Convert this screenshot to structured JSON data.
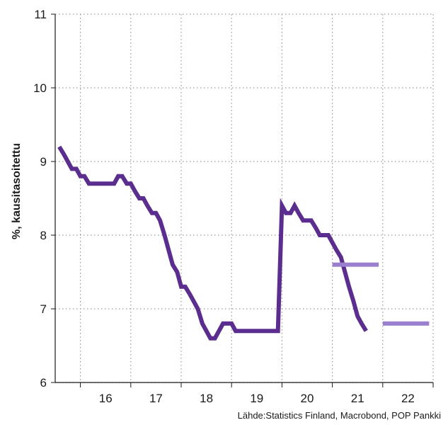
{
  "chart_data": {
    "type": "line",
    "ylabel": "%, kausitasoitettu",
    "xlabel": "",
    "ylim": [
      6,
      11
    ],
    "xlim": [
      2015.5,
      2023.0
    ],
    "y_ticks": [
      "6",
      "7",
      "8",
      "9",
      "10",
      "11"
    ],
    "x_tick_labels": [
      "16",
      "17",
      "18",
      "19",
      "20",
      "21",
      "22"
    ],
    "grid": true,
    "series": [
      {
        "type": "line",
        "color": "#5b2d8e",
        "x": [
          2015.58,
          2015.67,
          2015.75,
          2015.83,
          2015.92,
          2016.0,
          2016.08,
          2016.17,
          2016.25,
          2016.33,
          2016.42,
          2016.5,
          2016.58,
          2016.67,
          2016.75,
          2016.83,
          2016.92,
          2017.0,
          2017.08,
          2017.17,
          2017.25,
          2017.33,
          2017.42,
          2017.5,
          2017.58,
          2017.67,
          2017.75,
          2017.83,
          2017.92,
          2018.0,
          2018.08,
          2018.17,
          2018.25,
          2018.33,
          2018.42,
          2018.5,
          2018.58,
          2018.67,
          2018.75,
          2018.83,
          2018.92,
          2019.0,
          2019.08,
          2019.17,
          2019.25,
          2019.33,
          2019.42,
          2019.5,
          2019.58,
          2019.67,
          2019.75,
          2019.83,
          2019.92,
          2020.0,
          2020.08,
          2020.17,
          2020.25,
          2020.33,
          2020.42,
          2020.5,
          2020.58,
          2020.67,
          2020.75,
          2020.83,
          2020.92,
          2021.0,
          2021.08,
          2021.17,
          2021.25,
          2021.33,
          2021.42,
          2021.5,
          2021.58,
          2021.67
        ],
        "values": [
          9.2,
          9.1,
          9.0,
          8.9,
          8.9,
          8.8,
          8.8,
          8.7,
          8.7,
          8.7,
          8.7,
          8.7,
          8.7,
          8.7,
          8.8,
          8.8,
          8.7,
          8.7,
          8.6,
          8.5,
          8.5,
          8.4,
          8.3,
          8.3,
          8.2,
          8.0,
          7.8,
          7.6,
          7.5,
          7.3,
          7.3,
          7.2,
          7.1,
          7.0,
          6.8,
          6.7,
          6.6,
          6.6,
          6.7,
          6.8,
          6.8,
          6.8,
          6.7,
          6.7,
          6.7,
          6.7,
          6.7,
          6.7,
          6.7,
          6.7,
          6.7,
          6.7,
          6.7,
          8.4,
          8.3,
          8.3,
          8.4,
          8.3,
          8.2,
          8.2,
          8.2,
          8.1,
          8.0,
          8.0,
          8.0,
          7.9,
          7.8,
          7.7,
          7.5,
          7.3,
          7.1,
          6.9,
          6.8,
          6.7
        ]
      },
      {
        "type": "segment",
        "color": "#9b7fcf",
        "x": [
          2021.0,
          2021.92
        ],
        "values": [
          7.6,
          7.6
        ]
      },
      {
        "type": "segment",
        "color": "#9b7fcf",
        "x": [
          2022.0,
          2022.92
        ],
        "values": [
          6.8,
          6.8
        ]
      }
    ]
  },
  "source_text": "Lähde:Statistics Finland, Macrobond, POP Pankki"
}
